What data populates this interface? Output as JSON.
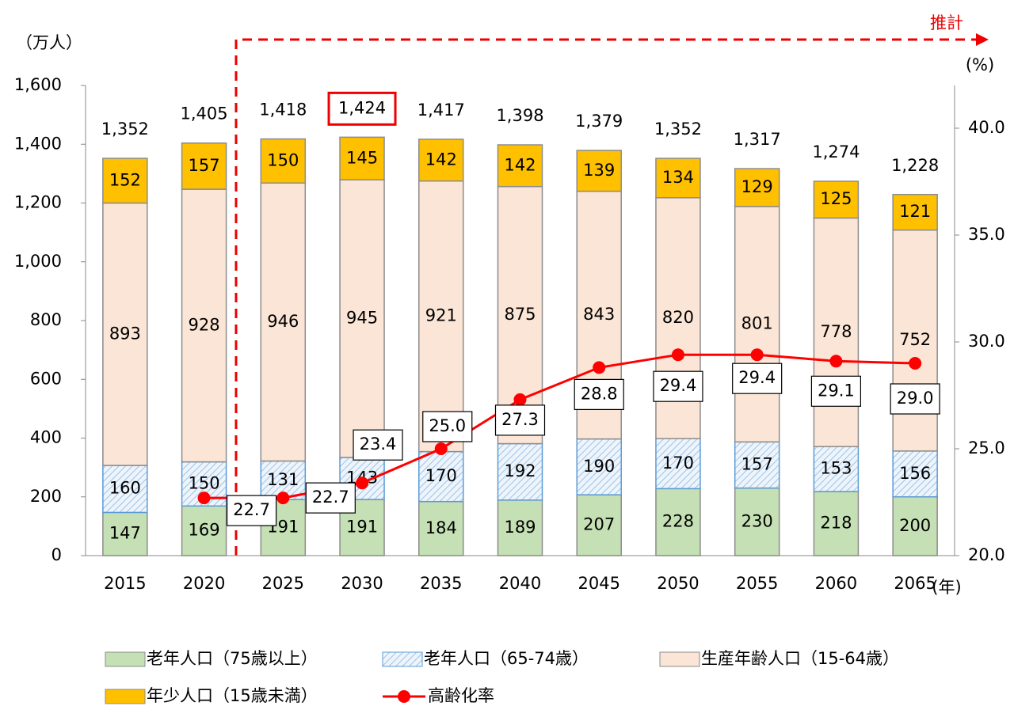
{
  "chart_data": {
    "type": "bar",
    "stacked": true,
    "y_label": "（万人）",
    "y2_label": "(%)",
    "x_label": "(年)",
    "annotation": "推計",
    "categories": [
      "2015",
      "2020",
      "2025",
      "2030",
      "2035",
      "2040",
      "2045",
      "2050",
      "2055",
      "2060",
      "2065"
    ],
    "series": [
      {
        "name": "老年人口（75歳以上）",
        "color": "#c5e0b4",
        "values": [
          147,
          169,
          191,
          191,
          184,
          189,
          207,
          228,
          230,
          218,
          200
        ]
      },
      {
        "name": "老年人口（65-74歳）",
        "color": "#dbe9f7",
        "values": [
          160,
          150,
          131,
          143,
          170,
          192,
          190,
          170,
          157,
          153,
          156
        ]
      },
      {
        "name": "生産年齢人口（15-64歳）",
        "color": "#fbe5d6",
        "values": [
          893,
          928,
          946,
          945,
          921,
          875,
          843,
          820,
          801,
          778,
          752
        ]
      },
      {
        "name": "年少人口（15歳未満）",
        "color": "#ffc000",
        "values": [
          152,
          157,
          150,
          145,
          142,
          142,
          139,
          134,
          129,
          125,
          121
        ]
      },
      {
        "name": "高齢化率",
        "type": "line",
        "axis": "y2",
        "color": "#ff0000",
        "values": [
          null,
          22.7,
          22.7,
          23.4,
          25.0,
          27.3,
          28.8,
          29.4,
          29.4,
          29.1,
          29.0
        ],
        "value_labels": [
          null,
          "22.7",
          "22.7",
          "23.4",
          "25.0",
          "27.3",
          "28.8",
          "29.4",
          "29.4",
          "29.1",
          "29.0"
        ]
      }
    ],
    "totals": {
      "values": [
        1352,
        1405,
        1418,
        1424,
        1417,
        1398,
        1379,
        1352,
        1317,
        1274,
        1228
      ],
      "value_labels": [
        "1,352",
        "1,405",
        "1,418",
        "1,424",
        "1,417",
        "1,398",
        "1,379",
        "1,352",
        "1,317",
        "1,274",
        "1,228"
      ]
    },
    "ylim": [
      0,
      1600
    ],
    "yticks": [
      0,
      200,
      400,
      600,
      800,
      {
        "value": 1000,
        "label": "1,000"
      },
      {
        "value": 1200,
        "label": "1,200"
      },
      {
        "value": 1400,
        "label": "1,400"
      },
      {
        "value": 1600,
        "label": "1,600"
      }
    ],
    "y2lim": [
      20,
      42
    ],
    "y2ticks": [
      {
        "value": 20,
        "label": "20.0"
      },
      {
        "value": 25,
        "label": "25.0"
      },
      {
        "value": 30,
        "label": "30.0"
      },
      {
        "value": 35,
        "label": "35.0"
      },
      {
        "value": 40,
        "label": "40.0"
      }
    ],
    "grid": false
  }
}
